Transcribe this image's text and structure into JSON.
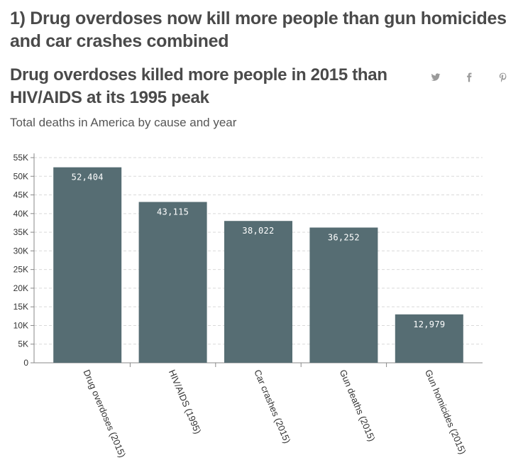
{
  "headline": "1) Drug overdoses now kill more people than gun homicides and car crashes combined",
  "share": {
    "twitter_icon": "twitter-icon",
    "facebook_icon": "facebook-icon",
    "pinterest_icon": "pinterest-icon",
    "icon_color": "#9a9a9a"
  },
  "chart_data": {
    "type": "bar",
    "title": "Drug overdoses killed more people in 2015 than HIV/AIDS at its 1995 peak",
    "subtitle": "Total deaths in America by cause and year",
    "categories": [
      "Drug overdoses (2015)",
      "HIV/AIDS (1995)",
      "Car crashes (2015)",
      "Gun deaths (2015)",
      "Gun homicides (2015)"
    ],
    "values": [
      52404,
      43115,
      38022,
      36252,
      12979
    ],
    "value_labels": [
      "52,404",
      "43,115",
      "38,022",
      "36,252",
      "12,979"
    ],
    "ylim": [
      0,
      55000
    ],
    "yticks": [
      0,
      5000,
      10000,
      15000,
      20000,
      25000,
      30000,
      35000,
      40000,
      45000,
      50000,
      55000
    ],
    "ytick_labels": [
      "0",
      "5K",
      "10K",
      "15K",
      "20K",
      "25K",
      "30K",
      "35K",
      "40K",
      "45K",
      "50K",
      "55K"
    ],
    "xlabel": "",
    "ylabel": "",
    "grid": true,
    "bar_color": "#566d73",
    "grid_color": "#d9d9d9"
  }
}
